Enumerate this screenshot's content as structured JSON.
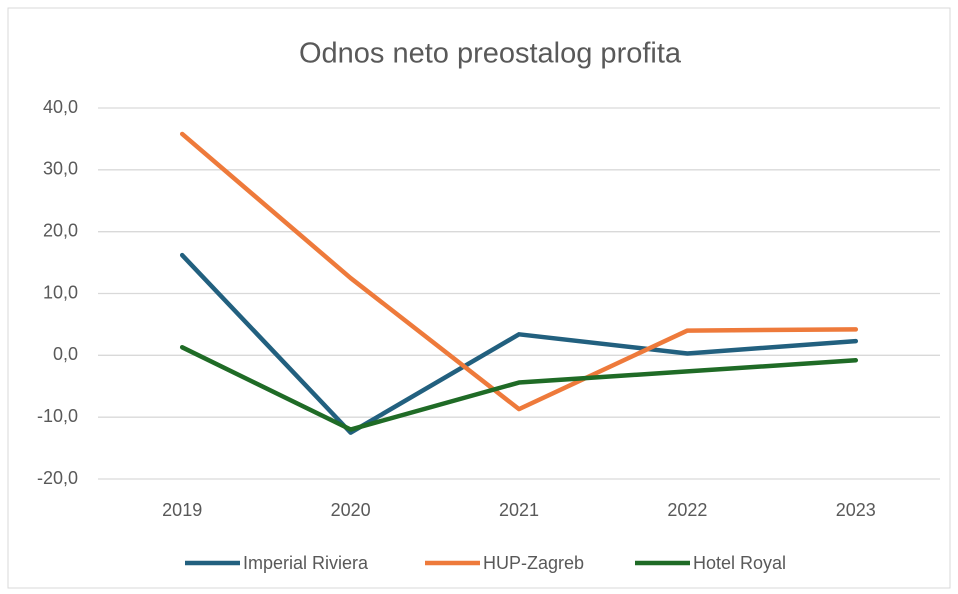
{
  "chart_data": {
    "type": "line",
    "title": "Odnos neto preostalog profita",
    "categories": [
      "2019",
      "2020",
      "2021",
      "2022",
      "2023"
    ],
    "series": [
      {
        "name": "Imperial Riviera",
        "color": "#22607f",
        "values": [
          16.2,
          -12.5,
          3.4,
          0.3,
          2.3
        ]
      },
      {
        "name": "HUP-Zagreb",
        "color": "#ee7a3b",
        "values": [
          35.8,
          12.5,
          -8.7,
          4.0,
          4.2
        ]
      },
      {
        "name": "Hotel Royal",
        "color": "#1f6b26",
        "values": [
          1.3,
          -12.0,
          -4.4,
          -2.6,
          -0.8
        ]
      }
    ],
    "ylim": [
      -20,
      40
    ],
    "yticks": [
      {
        "value": -20,
        "label": "-20,0"
      },
      {
        "value": -10,
        "label": "-10,0"
      },
      {
        "value": 0,
        "label": "0,0"
      },
      {
        "value": 10,
        "label": "10,0"
      },
      {
        "value": 20,
        "label": "20,0"
      },
      {
        "value": 30,
        "label": "30,0"
      },
      {
        "value": 40,
        "label": "40,0"
      }
    ],
    "grid": true,
    "legend": "bottom"
  }
}
